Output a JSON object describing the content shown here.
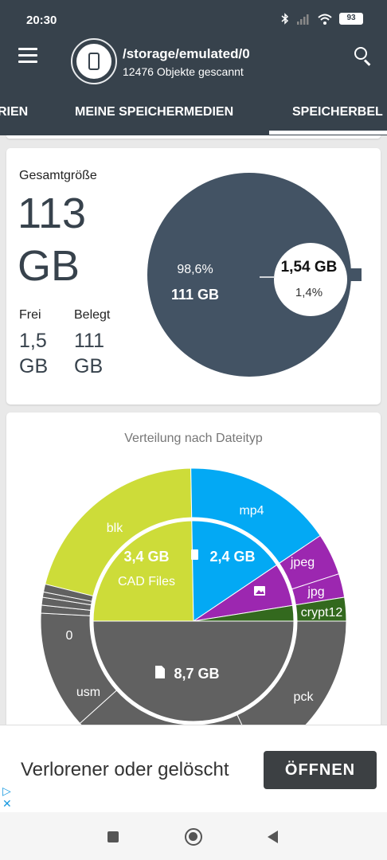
{
  "status_bar": {
    "time": "20:30",
    "battery": "93",
    "icons": [
      "bluetooth-icon",
      "signal-icon",
      "wifi-icon",
      "battery-icon"
    ]
  },
  "app_bar": {
    "path": "/storage/emulated/0",
    "scanned": "12476 Objekte gescannt"
  },
  "tabs": [
    {
      "label": "RIEN"
    },
    {
      "label": "MEINE SPEICHERMEDIEN"
    },
    {
      "label": "SPEICHERBEL"
    }
  ],
  "storage_card": {
    "total_label": "Gesamtgröße",
    "total_value": "113",
    "total_unit": "GB",
    "free_label": "Frei",
    "free_value": "1,5",
    "free_unit": "GB",
    "used_label": "Belegt",
    "used_value": "111",
    "used_unit": "GB"
  },
  "type_card": {
    "title": "Verteilung nach Dateityp"
  },
  "chart_data": [
    {
      "type": "pie",
      "slices": [
        {
          "label": "111 GB",
          "percent_label": "98,6%",
          "percent": 98.6,
          "color": "#435364"
        },
        {
          "label": "1,54 GB",
          "percent_label": "1,4%",
          "percent": 1.4,
          "color": "#ffffff"
        }
      ]
    },
    {
      "type": "pie",
      "title": "Verteilung nach Dateityp",
      "inner_ring": [
        {
          "label": "3,4 GB",
          "sublabel": "CAD Files",
          "value_gb": 3.4,
          "color": "#cddc39"
        },
        {
          "label": "2,4 GB",
          "value_gb": 2.4,
          "color": "#03a9f4",
          "icon": "film-icon"
        },
        {
          "label": "",
          "value_gb": 0.9,
          "color": "#9c27b0",
          "icon": "image-icon"
        },
        {
          "label": "",
          "value_gb": 0.3,
          "color": "#33691e"
        },
        {
          "label": "8,7 GB",
          "value_gb": 8.7,
          "color": "#616161",
          "icon": "document-icon"
        }
      ],
      "outer_ring": [
        {
          "label": "blk",
          "color": "#cddc39"
        },
        {
          "label": "mp4",
          "color": "#03a9f4"
        },
        {
          "label": "jpeg",
          "color": "#9c27b0"
        },
        {
          "label": "jpg",
          "color": "#9c27b0"
        },
        {
          "label": "crypt12",
          "color": "#33691e"
        },
        {
          "label": "pck",
          "color": "#616161"
        },
        {
          "label": "usm",
          "color": "#616161"
        },
        {
          "label": "0",
          "color": "#616161"
        }
      ]
    }
  ],
  "ad": {
    "text": "Verlorener oder gelöscht",
    "button": "ÖFFNEN"
  }
}
